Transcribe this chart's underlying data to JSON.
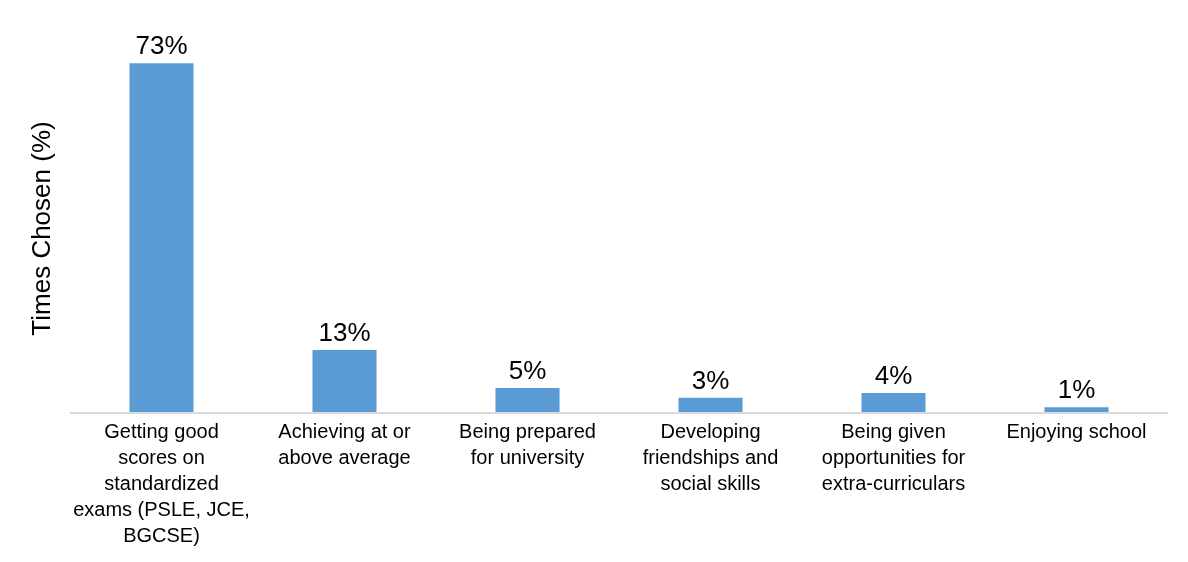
{
  "chart_data": {
    "type": "bar",
    "ylabel": "Times Chosen (%)",
    "categories": [
      "Getting good scores on standardized exams (PSLE, JCE, BGCSE)",
      "Achieving at or above average",
      "Being prepared for university",
      "Developing friendships and social skills",
      "Being given opportunities for extra-curriculars",
      "Enjoying school"
    ],
    "values": [
      73,
      13,
      5,
      3,
      4,
      1
    ],
    "value_labels": [
      "73%",
      "13%",
      "5%",
      "3%",
      "4%",
      "1%"
    ],
    "color": "#5b9bd5",
    "tick_labels": "x",
    "grid": false,
    "legend": false
  }
}
